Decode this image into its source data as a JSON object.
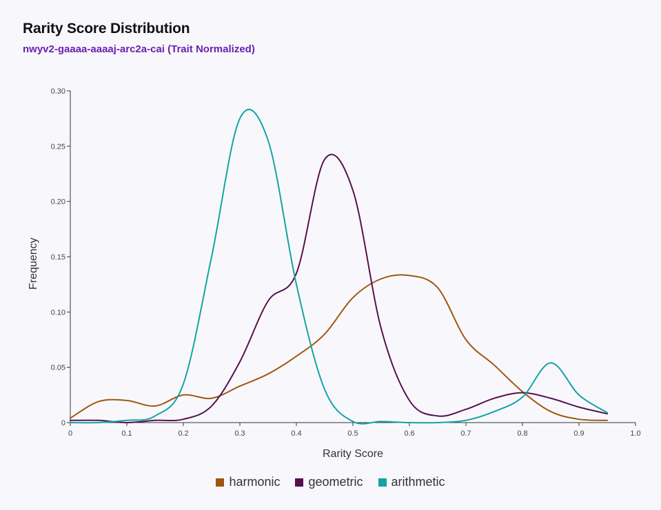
{
  "header": {
    "title": "Rarity Score Distribution",
    "subtitle": "nwyv2-gaaaa-aaaaj-arc2a-cai (Trait Normalized)"
  },
  "colors": {
    "subtitle": "#6b1fb1",
    "axis": "#333333",
    "background": "#f8f8fc"
  },
  "chart_data": {
    "type": "line",
    "title": "Rarity Score Distribution",
    "subtitle": "nwyv2-gaaaa-aaaaj-arc2a-cai (Trait Normalized)",
    "xlabel": "Rarity Score",
    "ylabel": "Frequency",
    "xlim": [
      0,
      1.0
    ],
    "ylim": [
      0,
      0.3
    ],
    "x_ticks": [
      "0",
      "0.1",
      "0.2",
      "0.3",
      "0.4",
      "0.5",
      "0.6",
      "0.7",
      "0.8",
      "0.9",
      "1.0"
    ],
    "y_ticks": [
      "0",
      "0.05",
      "0.10",
      "0.15",
      "0.20",
      "0.25",
      "0.30"
    ],
    "grid": false,
    "legend_position": "bottom-center",
    "x": [
      0,
      0.05,
      0.1,
      0.15,
      0.2,
      0.25,
      0.3,
      0.35,
      0.4,
      0.45,
      0.5,
      0.55,
      0.6,
      0.65,
      0.7,
      0.75,
      0.8,
      0.85,
      0.9,
      0.95
    ],
    "series": [
      {
        "name": "harmonic",
        "color": "#a0550f",
        "values": [
          0.004,
          0.019,
          0.02,
          0.015,
          0.025,
          0.022,
          0.033,
          0.044,
          0.06,
          0.08,
          0.113,
          0.13,
          0.133,
          0.122,
          0.075,
          0.052,
          0.028,
          0.01,
          0.003,
          0.002
        ]
      },
      {
        "name": "geometric",
        "color": "#56104f",
        "values": [
          0.002,
          0.002,
          0.0,
          0.002,
          0.003,
          0.015,
          0.055,
          0.11,
          0.135,
          0.238,
          0.21,
          0.085,
          0.02,
          0.006,
          0.012,
          0.022,
          0.027,
          0.022,
          0.014,
          0.008
        ]
      },
      {
        "name": "arithmetic",
        "color": "#13a3a3",
        "values": [
          0.0,
          0.0,
          0.002,
          0.006,
          0.035,
          0.15,
          0.275,
          0.255,
          0.125,
          0.03,
          0.001,
          0.001,
          0.0,
          0.0,
          0.002,
          0.01,
          0.023,
          0.054,
          0.025,
          0.009
        ]
      }
    ]
  }
}
